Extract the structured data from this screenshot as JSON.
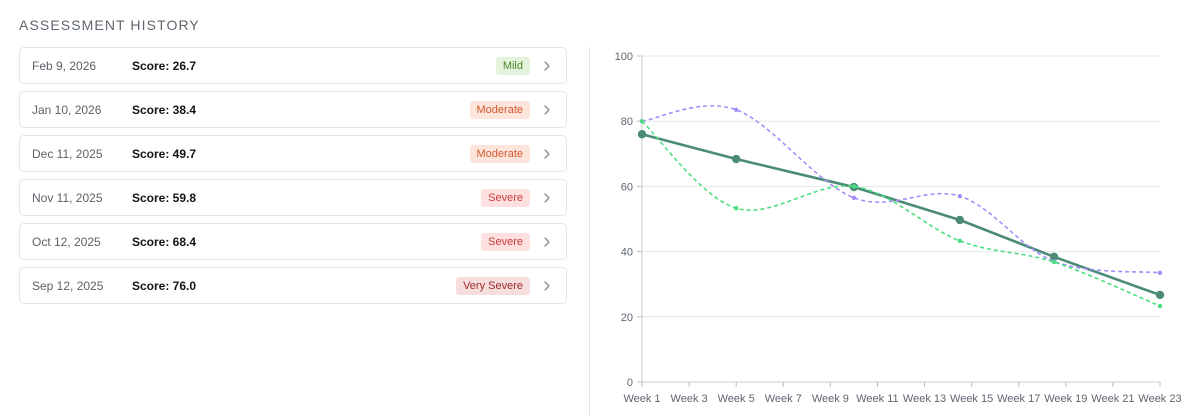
{
  "section_title": "ASSESSMENT HISTORY",
  "assessments": [
    {
      "date": "Feb 9, 2026",
      "score": "Score: 26.7",
      "severity": "Mild",
      "severity_class": "mild"
    },
    {
      "date": "Jan 10, 2026",
      "score": "Score: 38.4",
      "severity": "Moderate",
      "severity_class": "moderate"
    },
    {
      "date": "Dec 11, 2025",
      "score": "Score: 49.7",
      "severity": "Moderate",
      "severity_class": "moderate"
    },
    {
      "date": "Nov 11, 2025",
      "score": "Score: 59.8",
      "severity": "Severe",
      "severity_class": "severe"
    },
    {
      "date": "Oct 12, 2025",
      "score": "Score: 68.4",
      "severity": "Severe",
      "severity_class": "severe"
    },
    {
      "date": "Sep 12, 2025",
      "score": "Score: 76.0",
      "severity": "Very Severe",
      "severity_class": "very-severe"
    }
  ],
  "chart_data": {
    "type": "line",
    "categories": [
      "Week 1",
      "Week 3",
      "Week 5",
      "Week 7",
      "Week 9",
      "Week 11",
      "Week 13",
      "Week 15",
      "Week 17",
      "Week 19",
      "Week 21",
      "Week 23"
    ],
    "ylim": [
      0,
      100
    ],
    "yticks": [
      0,
      20,
      40,
      60,
      80,
      100
    ],
    "grid": true,
    "series": [
      {
        "color": "#4b8b78",
        "style": "solid",
        "points": [
          [
            1,
            76
          ],
          [
            5,
            68.4
          ],
          [
            10,
            59.8
          ],
          [
            14.5,
            49.7
          ],
          [
            18.5,
            38.4
          ],
          [
            23,
            26.7
          ]
        ]
      },
      {
        "color": "#a78bfa",
        "style": "dashed",
        "points": [
          [
            1,
            80
          ],
          [
            5,
            83.5
          ],
          [
            10,
            56.5
          ],
          [
            14.5,
            57
          ],
          [
            18.5,
            37
          ],
          [
            23,
            33.5
          ]
        ]
      },
      {
        "color": "#4ade80",
        "style": "dashed",
        "points": [
          [
            1,
            80
          ],
          [
            5,
            53.3
          ],
          [
            10,
            60
          ],
          [
            14.5,
            43.3
          ],
          [
            18.5,
            36.8
          ],
          [
            23,
            23.3
          ]
        ]
      }
    ]
  }
}
